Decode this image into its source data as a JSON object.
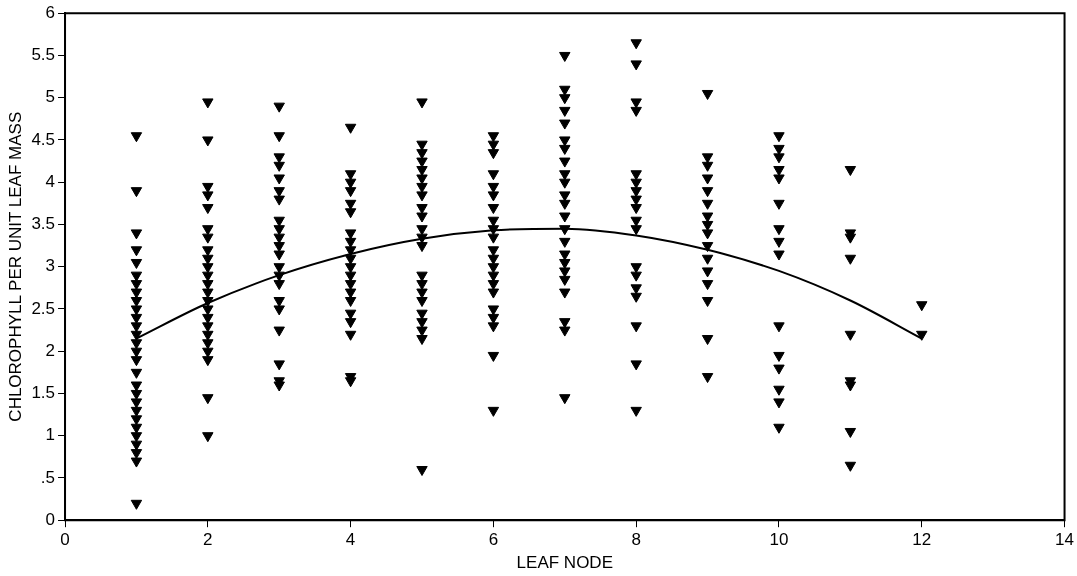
{
  "chart_data": {
    "type": "scatter",
    "xlabel": "LEAF NODE",
    "ylabel": "CHLOROPHYLL PER UNIT LEAF MASS",
    "xlim": [
      0,
      14
    ],
    "xticks": [
      0,
      2,
      4,
      6,
      8,
      10,
      12,
      14
    ],
    "ylim": [
      0,
      6
    ],
    "yticks": [
      0,
      {
        "value": 0.5,
        "label": ".5"
      },
      1,
      1.5,
      2,
      2.5,
      3,
      3.5,
      4,
      4.5,
      5,
      5.5,
      6
    ],
    "grid": false,
    "legend": false,
    "marker": "triangle",
    "series": [
      {
        "color": "#000000",
        "x": [
          1,
          1,
          1,
          1,
          1,
          1,
          1,
          1,
          1,
          1,
          1,
          1,
          1,
          1,
          1,
          1,
          1,
          1,
          1,
          1,
          1,
          1,
          1,
          1,
          1,
          1,
          1,
          1,
          2,
          2,
          2,
          2,
          2,
          2,
          2,
          2,
          2,
          2,
          2,
          2,
          2,
          2,
          2,
          2,
          2,
          2,
          2,
          2,
          2,
          2,
          2,
          3,
          3,
          3,
          3,
          3,
          3,
          3,
          3,
          3,
          3,
          3,
          3,
          3,
          3,
          3,
          3,
          3,
          3,
          3,
          3,
          3,
          4,
          4,
          4,
          4,
          4,
          4,
          4,
          4,
          4,
          4,
          4,
          4,
          4,
          4,
          4,
          4,
          4,
          4,
          4,
          4,
          5,
          5,
          5,
          5,
          5,
          5,
          5,
          5,
          5,
          5,
          5,
          5,
          5,
          5,
          5,
          5,
          5,
          5,
          5,
          5,
          5,
          5,
          6,
          6,
          6,
          6,
          6,
          6,
          6,
          6,
          6,
          6,
          6,
          6,
          6,
          6,
          6,
          6,
          6,
          6,
          6,
          6,
          6,
          7,
          7,
          7,
          7,
          7,
          7,
          7,
          7,
          7,
          7,
          7,
          7,
          7,
          7,
          7,
          7,
          7,
          7,
          7,
          7,
          7,
          7,
          7,
          8,
          8,
          8,
          8,
          8,
          8,
          8,
          8,
          8,
          8,
          8,
          8,
          8,
          8,
          8,
          8,
          8,
          8,
          9,
          9,
          9,
          9,
          9,
          9,
          9,
          9,
          9,
          9,
          9,
          9,
          9,
          9,
          9,
          9,
          10,
          10,
          10,
          10,
          10,
          10,
          10,
          10,
          10,
          10,
          10,
          10,
          10,
          10,
          10,
          11,
          11,
          11,
          11,
          11,
          11,
          11,
          11,
          11,
          12,
          12
        ],
        "values": [
          4.55,
          3.9,
          3.4,
          3.2,
          3.05,
          2.9,
          2.8,
          2.7,
          2.6,
          2.5,
          2.4,
          2.3,
          2.2,
          2.1,
          2.0,
          1.9,
          1.75,
          1.6,
          1.5,
          1.4,
          1.3,
          1.2,
          1.1,
          1.0,
          0.9,
          0.8,
          0.7,
          0.2,
          4.95,
          4.5,
          3.95,
          3.85,
          3.7,
          3.45,
          3.35,
          3.2,
          3.1,
          3.0,
          2.9,
          2.8,
          2.7,
          2.6,
          2.5,
          2.4,
          2.3,
          2.2,
          2.1,
          2.0,
          1.9,
          1.45,
          1.0,
          4.9,
          4.55,
          4.3,
          4.2,
          4.05,
          3.9,
          3.8,
          3.55,
          3.45,
          3.35,
          3.25,
          3.15,
          3.0,
          2.9,
          2.8,
          2.6,
          2.5,
          2.25,
          1.85,
          1.65,
          1.6,
          4.65,
          4.1,
          4.0,
          3.9,
          3.75,
          3.65,
          3.4,
          3.3,
          3.2,
          3.1,
          3.0,
          2.9,
          2.8,
          2.7,
          2.6,
          2.45,
          2.35,
          2.2,
          1.7,
          1.65,
          4.95,
          4.45,
          4.35,
          4.25,
          4.15,
          4.05,
          3.95,
          3.85,
          3.7,
          3.6,
          3.45,
          3.35,
          3.25,
          2.9,
          2.8,
          2.7,
          2.6,
          2.45,
          2.35,
          2.25,
          2.15,
          0.6,
          4.55,
          4.45,
          4.35,
          4.1,
          3.95,
          3.85,
          3.7,
          3.55,
          3.45,
          3.35,
          3.2,
          3.1,
          3.0,
          2.9,
          2.8,
          2.7,
          2.5,
          2.4,
          2.3,
          1.95,
          1.3,
          5.5,
          5.1,
          5.0,
          4.85,
          4.7,
          4.5,
          4.4,
          4.25,
          4.1,
          4.0,
          3.85,
          3.75,
          3.6,
          3.45,
          3.3,
          3.15,
          3.05,
          2.95,
          2.85,
          2.7,
          2.35,
          2.25,
          1.45,
          5.65,
          5.4,
          4.95,
          4.85,
          4.1,
          4.0,
          3.9,
          3.8,
          3.7,
          3.55,
          3.45,
          3.0,
          2.9,
          2.75,
          2.65,
          2.3,
          1.85,
          1.3,
          5.05,
          4.3,
          4.2,
          4.05,
          3.9,
          3.75,
          3.6,
          3.5,
          3.4,
          3.25,
          3.1,
          2.95,
          2.8,
          2.6,
          2.15,
          1.7,
          4.55,
          4.4,
          4.3,
          4.15,
          4.05,
          3.75,
          3.45,
          3.3,
          3.15,
          2.3,
          1.95,
          1.8,
          1.55,
          1.4,
          1.1,
          4.15,
          3.4,
          3.35,
          3.1,
          2.2,
          1.65,
          1.6,
          1.05,
          0.65,
          2.55,
          2.2
        ]
      },
      {
        "type": "line",
        "color": "#000000",
        "marker": "none",
        "x": [
          1,
          2,
          3,
          4,
          5,
          6,
          7,
          8,
          9,
          10,
          11,
          12
        ],
        "values": [
          2.15,
          2.57,
          2.9,
          3.15,
          3.33,
          3.43,
          3.45,
          3.37,
          3.2,
          2.95,
          2.6,
          2.15
        ]
      }
    ]
  }
}
